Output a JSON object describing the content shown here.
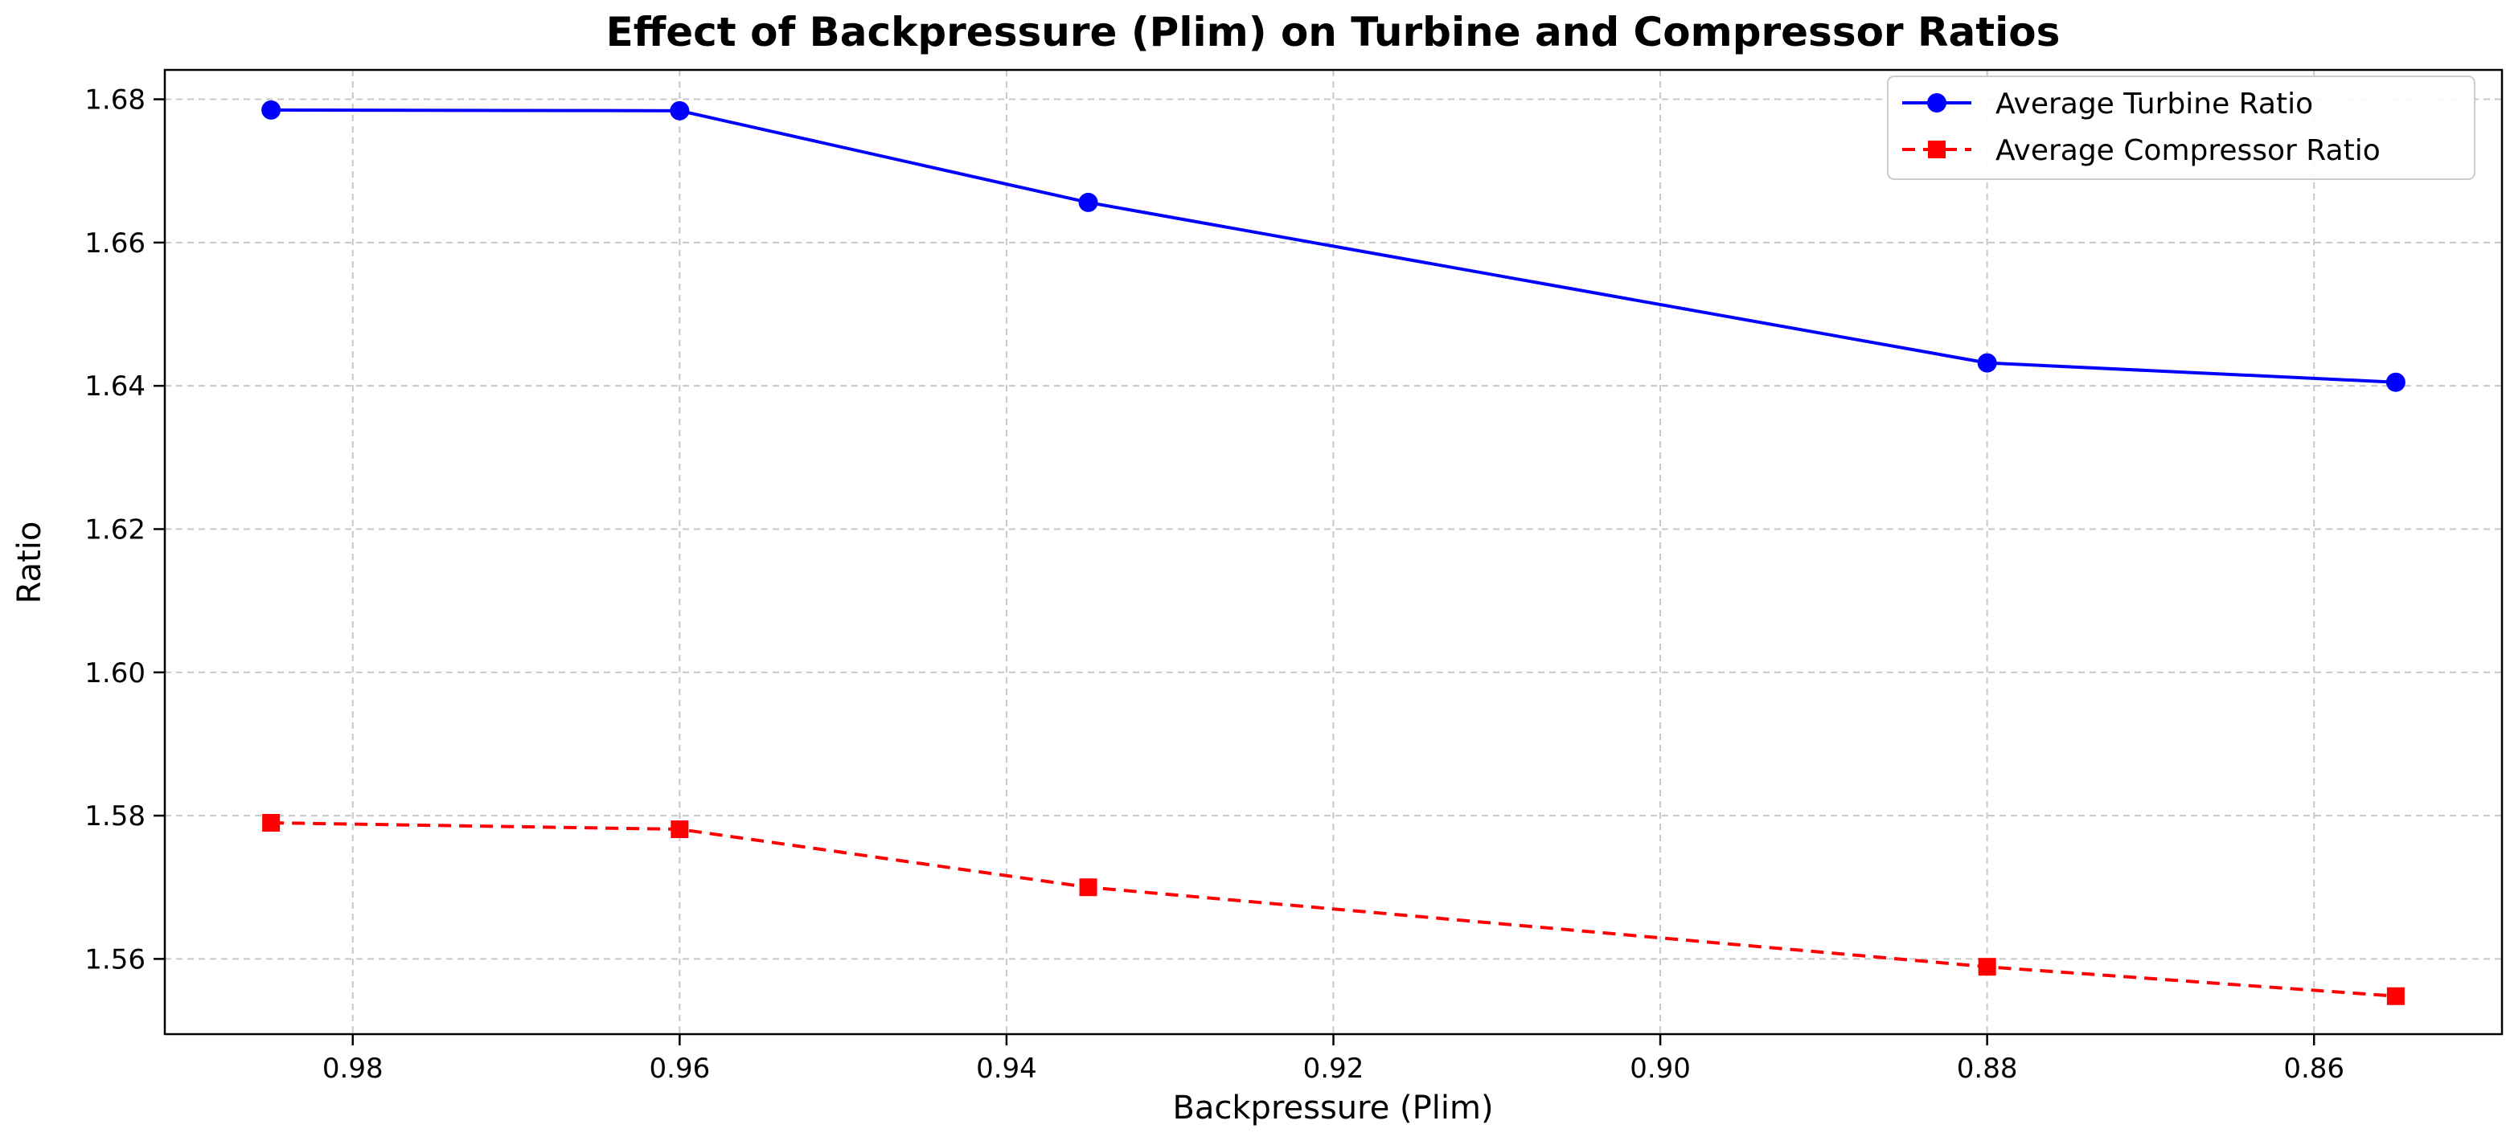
{
  "chart_data": {
    "type": "line",
    "title": "Effect of Backpressure (Plim) on Turbine and Compressor Ratios",
    "xlabel": "Backpressure (Plim)",
    "ylabel": "Ratio",
    "x": [
      0.985,
      0.96,
      0.935,
      0.88,
      0.855
    ],
    "xlim": [
      0.9915,
      0.8485
    ],
    "ylim": [
      1.5495,
      1.6841
    ],
    "x_ticks": [
      0.98,
      0.96,
      0.94,
      0.92,
      0.9,
      0.88,
      0.86
    ],
    "x_tick_labels": [
      "0.98",
      "0.96",
      "0.94",
      "0.92",
      "0.90",
      "0.88",
      "0.86"
    ],
    "y_ticks": [
      1.56,
      1.58,
      1.6,
      1.62,
      1.64,
      1.66,
      1.68
    ],
    "y_tick_labels": [
      "1.56",
      "1.58",
      "1.60",
      "1.62",
      "1.64",
      "1.66",
      "1.68"
    ],
    "grid": true,
    "legend_position": "top-right",
    "series": [
      {
        "name": "Average Turbine Ratio",
        "values": [
          1.6785,
          1.6784,
          1.6656,
          1.6432,
          1.6405
        ],
        "color": "#0000ff",
        "marker": "circle",
        "line_style": "solid"
      },
      {
        "name": "Average Compressor Ratio",
        "values": [
          1.579,
          1.5781,
          1.57,
          1.5589,
          1.5548
        ],
        "color": "#ff0000",
        "marker": "square",
        "line_style": "dashed"
      }
    ]
  }
}
